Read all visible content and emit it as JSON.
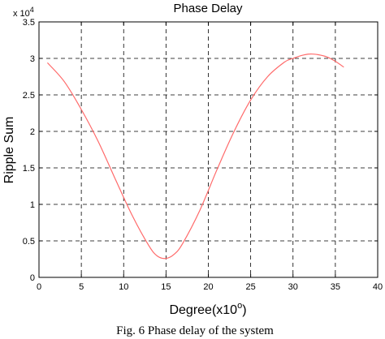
{
  "chart_data": {
    "type": "line",
    "title": "Phase Delay",
    "xlabel": "Degree(x10",
    "xlabel_sup": "o",
    "xlabel_close": ")",
    "ylabel": "Ripple Sum",
    "y_exponent_base": "x 10",
    "y_exponent_power": "4",
    "xlim": [
      0,
      40
    ],
    "ylim": [
      0,
      3.5
    ],
    "x_ticks": [
      0,
      5,
      10,
      15,
      20,
      25,
      30,
      35,
      40
    ],
    "x_tick_labels": [
      "0",
      "5",
      "10",
      "15",
      "20",
      "25",
      "30",
      "35",
      "40"
    ],
    "y_ticks": [
      0,
      0.5,
      1,
      1.5,
      2,
      2.5,
      3,
      3.5
    ],
    "y_tick_labels": [
      "0",
      "0.5",
      "1",
      "1.5",
      "2",
      "2.5",
      "3",
      "3.5"
    ],
    "grid": true,
    "series": [
      {
        "color": "#ff6a6a",
        "x": [
          1,
          3,
          5,
          7,
          9,
          11,
          13,
          14,
          15,
          16,
          17,
          19,
          21,
          23,
          25,
          27,
          29,
          30,
          31,
          32,
          33,
          34,
          35,
          36
        ],
        "y": [
          2.94,
          2.68,
          2.3,
          1.86,
          1.35,
          0.85,
          0.43,
          0.29,
          0.26,
          0.32,
          0.47,
          0.92,
          1.47,
          1.99,
          2.43,
          2.75,
          2.95,
          3.0,
          3.04,
          3.06,
          3.05,
          3.02,
          2.96,
          2.88
        ]
      }
    ]
  },
  "caption": "Fig. 6 Phase delay of the system"
}
